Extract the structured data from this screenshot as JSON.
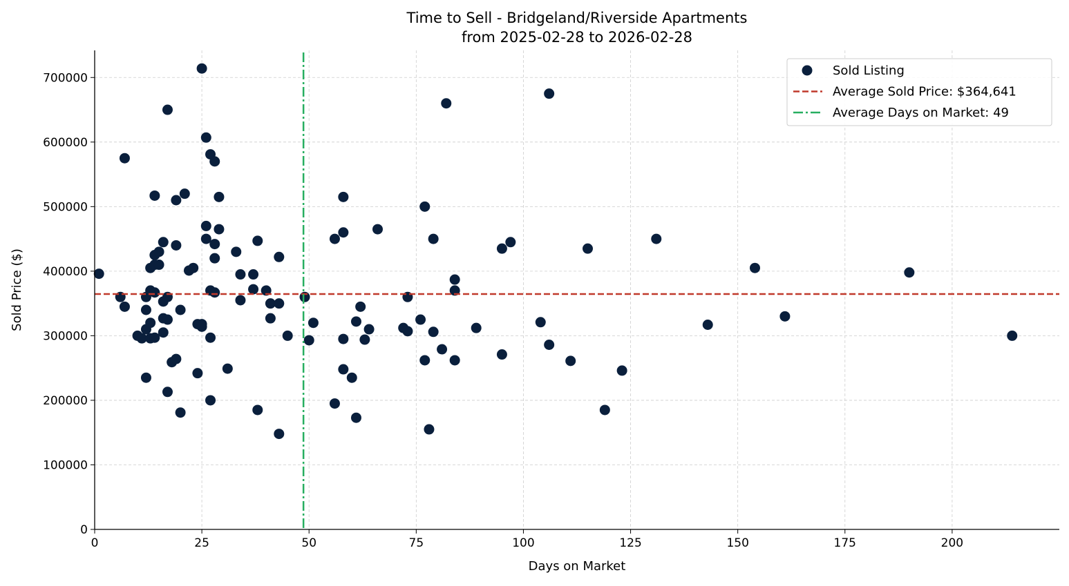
{
  "chart_data": {
    "type": "scatter",
    "title": "Time to Sell - Bridgeland/Riverside Apartments",
    "subtitle": "from 2025-02-28 to 2026-02-28",
    "xlabel": "Days on Market",
    "ylabel": "Sold Price ($)",
    "xlim": [
      0,
      225
    ],
    "ylim": [
      0,
      742000
    ],
    "xticks": [
      0,
      25,
      50,
      75,
      100,
      125,
      150,
      175,
      200
    ],
    "yticks": [
      0,
      100000,
      200000,
      300000,
      400000,
      500000,
      600000,
      700000
    ],
    "grid": true,
    "legend_position": "top-right",
    "colors": {
      "points": "#0a1f3c",
      "avg_price": "#c0392b",
      "avg_days": "#27ae60",
      "grid": "#cccccc"
    },
    "legend": [
      {
        "label": "Sold Listing",
        "kind": "point"
      },
      {
        "label": "Average Sold Price: $364,641",
        "kind": "dashed"
      },
      {
        "label": "Average Days on Market: 49",
        "kind": "dashdot"
      }
    ],
    "avg_price": 364641,
    "avg_days": 48.7,
    "points": [
      [
        1,
        396000
      ],
      [
        6,
        360000
      ],
      [
        7,
        575000
      ],
      [
        7,
        345000
      ],
      [
        10,
        300000
      ],
      [
        11,
        296000
      ],
      [
        12,
        235000
      ],
      [
        12,
        310000
      ],
      [
        12,
        340000
      ],
      [
        12,
        360000
      ],
      [
        13,
        320000
      ],
      [
        13,
        370000
      ],
      [
        13,
        405000
      ],
      [
        13,
        296000
      ],
      [
        14,
        517000
      ],
      [
        14,
        425000
      ],
      [
        14,
        367000
      ],
      [
        14,
        297000
      ],
      [
        14,
        410000
      ],
      [
        15,
        430000
      ],
      [
        15,
        410000
      ],
      [
        16,
        445000
      ],
      [
        16,
        353000
      ],
      [
        16,
        327000
      ],
      [
        16,
        305000
      ],
      [
        17,
        650000
      ],
      [
        17,
        360000
      ],
      [
        17,
        325000
      ],
      [
        17,
        213000
      ],
      [
        18,
        259000
      ],
      [
        19,
        510000
      ],
      [
        19,
        440000
      ],
      [
        19,
        264000
      ],
      [
        20,
        340000
      ],
      [
        20,
        181000
      ],
      [
        21,
        520000
      ],
      [
        22,
        401000
      ],
      [
        23,
        405000
      ],
      [
        24,
        242000
      ],
      [
        24,
        318000
      ],
      [
        25,
        714000
      ],
      [
        25,
        318000
      ],
      [
        25,
        314000
      ],
      [
        26,
        607000
      ],
      [
        26,
        470000
      ],
      [
        26,
        450000
      ],
      [
        27,
        581000
      ],
      [
        27,
        370000
      ],
      [
        27,
        297000
      ],
      [
        27,
        200000
      ],
      [
        28,
        570000
      ],
      [
        28,
        442000
      ],
      [
        28,
        420000
      ],
      [
        28,
        367000
      ],
      [
        29,
        515000
      ],
      [
        29,
        465000
      ],
      [
        31,
        249000
      ],
      [
        33,
        430000
      ],
      [
        34,
        395000
      ],
      [
        34,
        355000
      ],
      [
        37,
        395000
      ],
      [
        37,
        372000
      ],
      [
        38,
        447000
      ],
      [
        38,
        185000
      ],
      [
        40,
        370000
      ],
      [
        41,
        350000
      ],
      [
        41,
        327000
      ],
      [
        43,
        422000
      ],
      [
        43,
        350000
      ],
      [
        43,
        148000
      ],
      [
        45,
        300000
      ],
      [
        49,
        360000
      ],
      [
        50,
        293000
      ],
      [
        51,
        320000
      ],
      [
        56,
        450000
      ],
      [
        56,
        195000
      ],
      [
        58,
        515000
      ],
      [
        58,
        460000
      ],
      [
        58,
        295000
      ],
      [
        58,
        248000
      ],
      [
        60,
        235000
      ],
      [
        61,
        322000
      ],
      [
        61,
        173000
      ],
      [
        62,
        345000
      ],
      [
        63,
        294000
      ],
      [
        64,
        310000
      ],
      [
        66,
        465000
      ],
      [
        72,
        312000
      ],
      [
        73,
        360000
      ],
      [
        73,
        307000
      ],
      [
        76,
        325000
      ],
      [
        77,
        500000
      ],
      [
        77,
        262000
      ],
      [
        78,
        155000
      ],
      [
        79,
        450000
      ],
      [
        79,
        306000
      ],
      [
        81,
        279000
      ],
      [
        82,
        660000
      ],
      [
        84,
        387000
      ],
      [
        84,
        370000
      ],
      [
        84,
        262000
      ],
      [
        89,
        312000
      ],
      [
        95,
        435000
      ],
      [
        95,
        271000
      ],
      [
        97,
        445000
      ],
      [
        104,
        321000
      ],
      [
        106,
        675000
      ],
      [
        106,
        286000
      ],
      [
        111,
        261000
      ],
      [
        115,
        435000
      ],
      [
        119,
        185000
      ],
      [
        123,
        246000
      ],
      [
        131,
        450000
      ],
      [
        143,
        317000
      ],
      [
        154,
        405000
      ],
      [
        161,
        330000
      ],
      [
        190,
        398000
      ],
      [
        214,
        300000
      ]
    ]
  }
}
